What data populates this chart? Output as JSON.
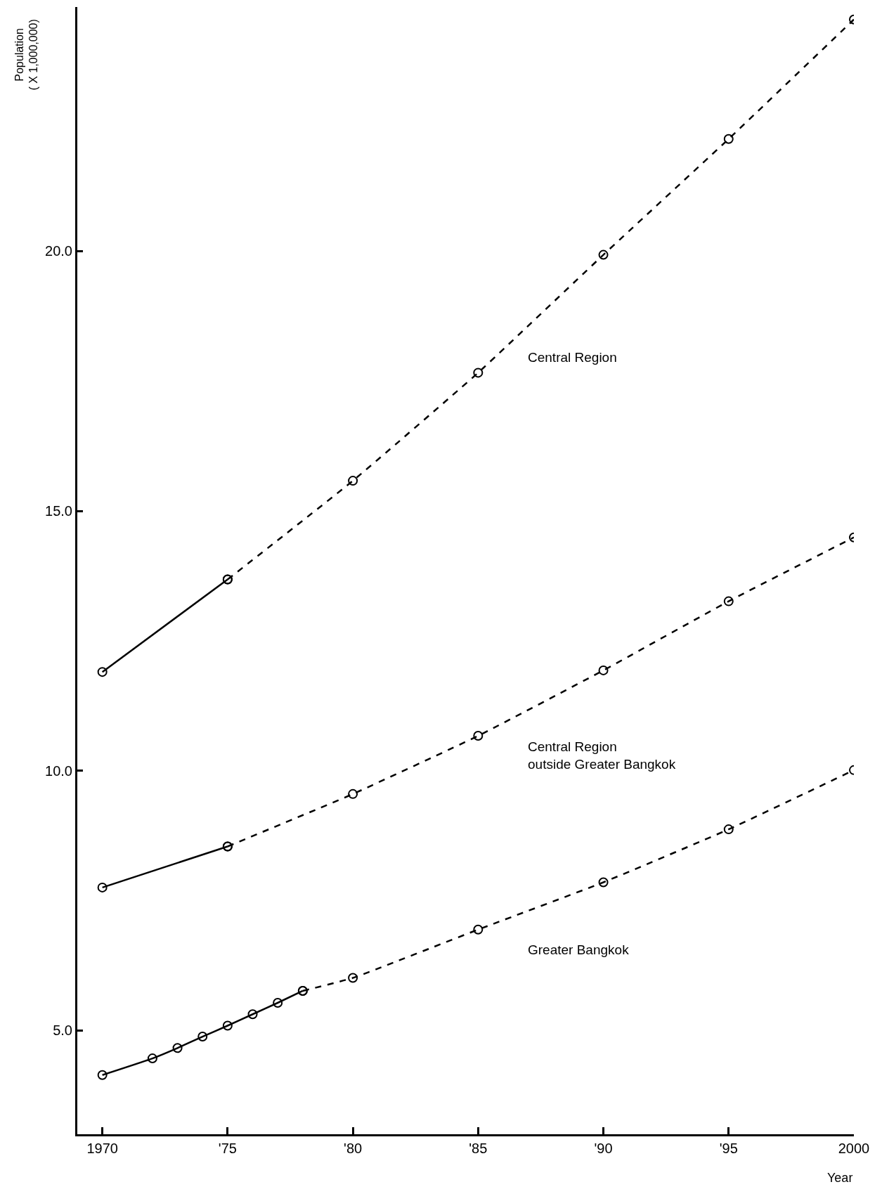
{
  "chart_data": {
    "type": "line",
    "xlabel": "Year",
    "ylabel": "Population\n( X 1,000,000)",
    "xlim": [
      1969,
      2000
    ],
    "xticks": [
      1970,
      {
        "value": 1975,
        "label": "'75"
      },
      {
        "value": 1980,
        "label": "'80"
      },
      {
        "value": 1985,
        "label": "'85"
      },
      {
        "value": 1990,
        "label": "'90"
      },
      {
        "value": 1995,
        "label": "'95"
      },
      2000
    ],
    "ylim": [
      3.0,
      24.7
    ],
    "yticks": [
      {
        "value": 5,
        "label": "5.0"
      },
      {
        "value": 10,
        "label": "10.0"
      },
      {
        "value": 15,
        "label": "15.0"
      },
      {
        "value": 20,
        "label": "20.0"
      }
    ],
    "legend": false,
    "marker": "circle",
    "series": [
      {
        "color": "#000000",
        "line_style": "solid",
        "x": [
          1970,
          1975
        ],
        "values": [
          11.9,
          13.68
        ]
      },
      {
        "name": "Central Region",
        "color": "#000000",
        "line_style": "dashed",
        "x": [
          1975,
          1980,
          1985,
          1990,
          1995,
          2000
        ],
        "values": [
          13.68,
          15.58,
          17.66,
          19.93,
          22.16,
          24.46
        ]
      },
      {
        "color": "#000000",
        "line_style": "solid",
        "x": [
          1970,
          1975
        ],
        "values": [
          7.75,
          8.54
        ]
      },
      {
        "name": "Central Region\noutside Greater Bangkok",
        "color": "#000000",
        "line_style": "dashed",
        "x": [
          1975,
          1980,
          1985,
          1990,
          1995,
          2000
        ],
        "values": [
          8.54,
          9.55,
          10.67,
          11.93,
          13.26,
          14.49
        ]
      },
      {
        "color": "#000000",
        "line_style": "solid",
        "x": [
          1970,
          1972,
          1973,
          1974,
          1975,
          1976,
          1977,
          1978
        ],
        "values": [
          4.14,
          4.46,
          4.66,
          4.88,
          5.09,
          5.31,
          5.53,
          5.76
        ]
      },
      {
        "name": "Greater Bangkok",
        "color": "#000000",
        "line_style": "dashed",
        "x": [
          1978,
          1980,
          1985,
          1990,
          1995,
          2000
        ],
        "values": [
          5.76,
          6.01,
          6.94,
          7.85,
          8.87,
          10.01
        ]
      }
    ]
  }
}
